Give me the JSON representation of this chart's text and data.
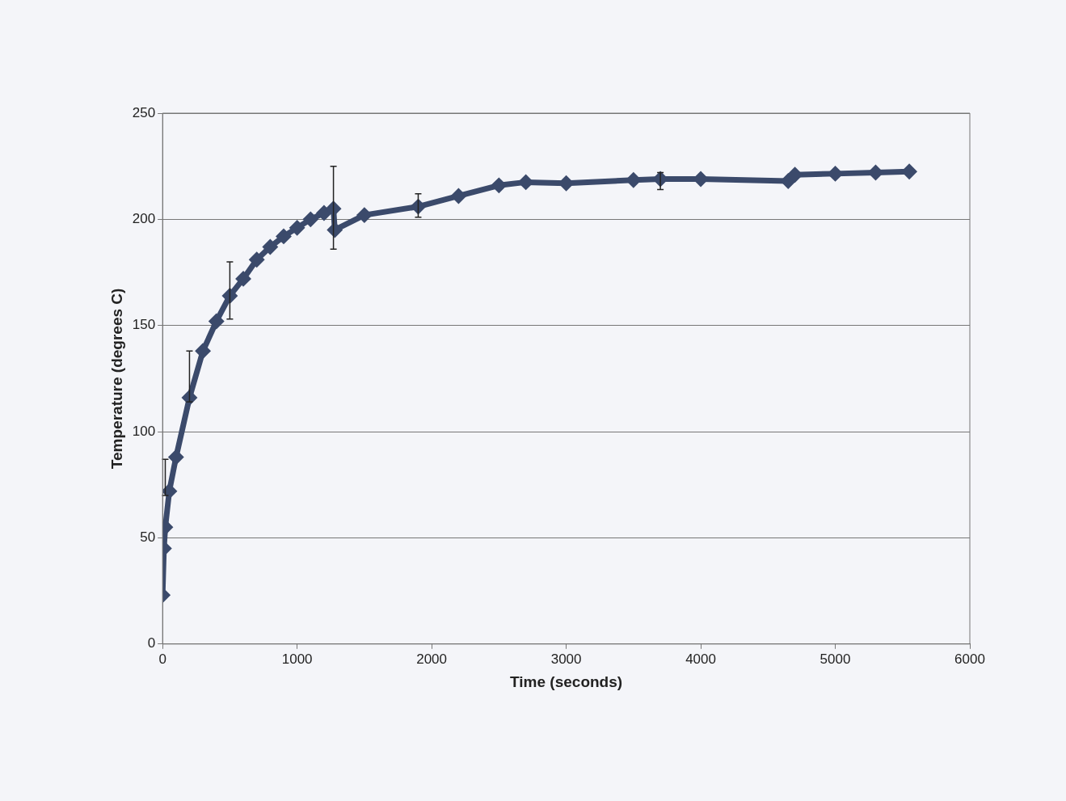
{
  "chart_data": {
    "type": "line",
    "xlabel": "Time (seconds)",
    "ylabel": "Temperature (degrees C)",
    "xlim": [
      0,
      6000
    ],
    "xticks": [
      0,
      1000,
      2000,
      3000,
      4000,
      5000,
      6000
    ],
    "ylim": [
      0,
      250
    ],
    "yticks": [
      0,
      50,
      100,
      150,
      200,
      250
    ],
    "grid": "y",
    "marker": "diamond",
    "line_style": "solid",
    "series": [
      {
        "color": "#3b4a6b",
        "x": [
          0,
          10,
          20,
          50,
          100,
          200,
          300,
          400,
          500,
          600,
          700,
          800,
          900,
          1000,
          1100,
          1200,
          1270,
          1280,
          1500,
          1900,
          2200,
          2500,
          2700,
          3000,
          3500,
          3700,
          4000,
          4650,
          4700,
          5000,
          5300,
          5550
        ],
        "values": [
          23,
          45,
          55,
          72,
          88,
          116,
          138,
          152,
          164,
          172,
          181,
          187,
          192,
          196,
          200,
          203,
          205,
          195,
          202,
          206,
          211,
          216,
          217.5,
          217,
          218.5,
          219,
          219,
          218,
          221,
          221.5,
          222,
          222.5
        ],
        "errors": [
          null,
          null,
          [
            70,
            87
          ],
          null,
          null,
          [
            114,
            138
          ],
          null,
          null,
          [
            153,
            180
          ],
          null,
          null,
          null,
          null,
          null,
          null,
          null,
          [
            186,
            225
          ],
          null,
          null,
          [
            201,
            212
          ],
          null,
          null,
          null,
          null,
          null,
          [
            214,
            222
          ],
          null,
          null,
          null,
          null,
          null,
          null
        ]
      }
    ]
  }
}
